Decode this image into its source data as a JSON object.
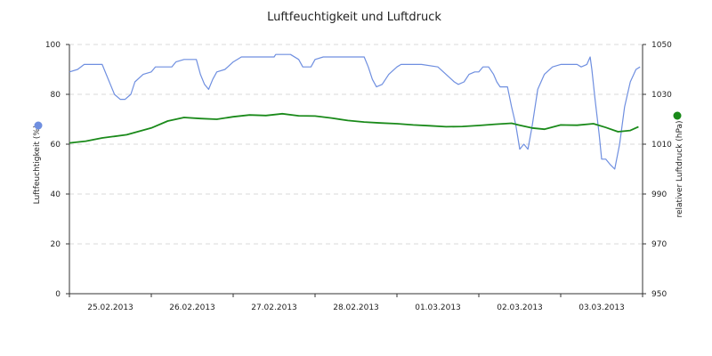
{
  "chart_data": {
    "type": "line",
    "title": "Luftfeuchtigkeit und Luftdruck",
    "xlabel": "",
    "x_tick_labels": [
      "25.02.2013",
      "26.02.2013",
      "27.02.2013",
      "28.02.2013",
      "01.03.2013",
      "02.03.2013",
      "03.03.2013"
    ],
    "x_range_days": [
      0,
      7
    ],
    "y_left": {
      "label": "Luftfeuchtigkeit (%)",
      "range": [
        0,
        100
      ],
      "ticks": [
        "0",
        "20",
        "40",
        "60",
        "80",
        "100"
      ]
    },
    "y_right": {
      "label": "relativer Luftdruck (hPa)",
      "range": [
        950,
        1050
      ],
      "ticks": [
        "950",
        "970",
        "990",
        "1010",
        "1030",
        "1050"
      ]
    },
    "grid": true,
    "legend": "colored dots beside each y-axis label",
    "series": [
      {
        "axis": "left",
        "color": "#6f8fe0",
        "points": [
          [
            0.0,
            89
          ],
          [
            0.1,
            90
          ],
          [
            0.18,
            92
          ],
          [
            0.4,
            92
          ],
          [
            0.45,
            88
          ],
          [
            0.5,
            84
          ],
          [
            0.55,
            80
          ],
          [
            0.62,
            78
          ],
          [
            0.68,
            78
          ],
          [
            0.75,
            80
          ],
          [
            0.8,
            85
          ],
          [
            0.9,
            88
          ],
          [
            1.0,
            89
          ],
          [
            1.05,
            91
          ],
          [
            1.25,
            91
          ],
          [
            1.3,
            93
          ],
          [
            1.4,
            94
          ],
          [
            1.55,
            94
          ],
          [
            1.6,
            88
          ],
          [
            1.65,
            84
          ],
          [
            1.7,
            82
          ],
          [
            1.75,
            86
          ],
          [
            1.8,
            89
          ],
          [
            1.9,
            90
          ],
          [
            2.0,
            93
          ],
          [
            2.1,
            95
          ],
          [
            2.5,
            95
          ],
          [
            2.52,
            96
          ],
          [
            2.7,
            96
          ],
          [
            2.8,
            94
          ],
          [
            2.85,
            91
          ],
          [
            2.95,
            91
          ],
          [
            3.0,
            94
          ],
          [
            3.1,
            95
          ],
          [
            3.6,
            95
          ],
          [
            3.65,
            91
          ],
          [
            3.7,
            86
          ],
          [
            3.75,
            83
          ],
          [
            3.82,
            84
          ],
          [
            3.9,
            88
          ],
          [
            4.0,
            91
          ],
          [
            4.05,
            92
          ],
          [
            4.3,
            92
          ],
          [
            4.5,
            91
          ],
          [
            4.6,
            88
          ],
          [
            4.7,
            85
          ],
          [
            4.75,
            84
          ],
          [
            4.82,
            85
          ],
          [
            4.88,
            88
          ],
          [
            4.95,
            89
          ],
          [
            5.0,
            89
          ],
          [
            5.05,
            91
          ],
          [
            5.12,
            91
          ],
          [
            5.18,
            88
          ],
          [
            5.22,
            85
          ],
          [
            5.26,
            83
          ],
          [
            5.35,
            83
          ],
          [
            5.4,
            75
          ],
          [
            5.45,
            68
          ],
          [
            5.5,
            58
          ],
          [
            5.55,
            60
          ],
          [
            5.6,
            58
          ],
          [
            5.65,
            67
          ],
          [
            5.72,
            82
          ],
          [
            5.8,
            88
          ],
          [
            5.9,
            91
          ],
          [
            6.0,
            92
          ],
          [
            6.2,
            92
          ],
          [
            6.25,
            91
          ],
          [
            6.32,
            92
          ],
          [
            6.36,
            95
          ],
          [
            6.38,
            90
          ],
          [
            6.42,
            78
          ],
          [
            6.47,
            64
          ],
          [
            6.5,
            54
          ],
          [
            6.55,
            54
          ],
          [
            6.6,
            52
          ],
          [
            6.66,
            50
          ],
          [
            6.72,
            60
          ],
          [
            6.78,
            75
          ],
          [
            6.85,
            85
          ],
          [
            6.92,
            90
          ],
          [
            6.97,
            91
          ]
        ]
      },
      {
        "axis": "right",
        "color": "#1a8a1a",
        "points": [
          [
            0.0,
            1010.5
          ],
          [
            0.2,
            1011.2
          ],
          [
            0.4,
            1012.5
          ],
          [
            0.7,
            1013.8
          ],
          [
            1.0,
            1016.5
          ],
          [
            1.2,
            1019.3
          ],
          [
            1.4,
            1020.7
          ],
          [
            1.6,
            1020.3
          ],
          [
            1.8,
            1020.0
          ],
          [
            2.0,
            1021.0
          ],
          [
            2.2,
            1021.7
          ],
          [
            2.4,
            1021.5
          ],
          [
            2.6,
            1022.2
          ],
          [
            2.8,
            1021.4
          ],
          [
            3.0,
            1021.3
          ],
          [
            3.2,
            1020.5
          ],
          [
            3.4,
            1019.5
          ],
          [
            3.6,
            1018.9
          ],
          [
            3.8,
            1018.5
          ],
          [
            4.0,
            1018.2
          ],
          [
            4.2,
            1017.7
          ],
          [
            4.4,
            1017.4
          ],
          [
            4.6,
            1017.0
          ],
          [
            4.8,
            1017.1
          ],
          [
            5.0,
            1017.5
          ],
          [
            5.2,
            1018.0
          ],
          [
            5.4,
            1018.4
          ],
          [
            5.5,
            1017.6
          ],
          [
            5.65,
            1016.5
          ],
          [
            5.8,
            1016.0
          ],
          [
            6.0,
            1017.7
          ],
          [
            6.2,
            1017.6
          ],
          [
            6.4,
            1018.2
          ],
          [
            6.55,
            1016.7
          ],
          [
            6.7,
            1015.0
          ],
          [
            6.85,
            1015.5
          ],
          [
            6.95,
            1017.0
          ]
        ]
      }
    ]
  }
}
